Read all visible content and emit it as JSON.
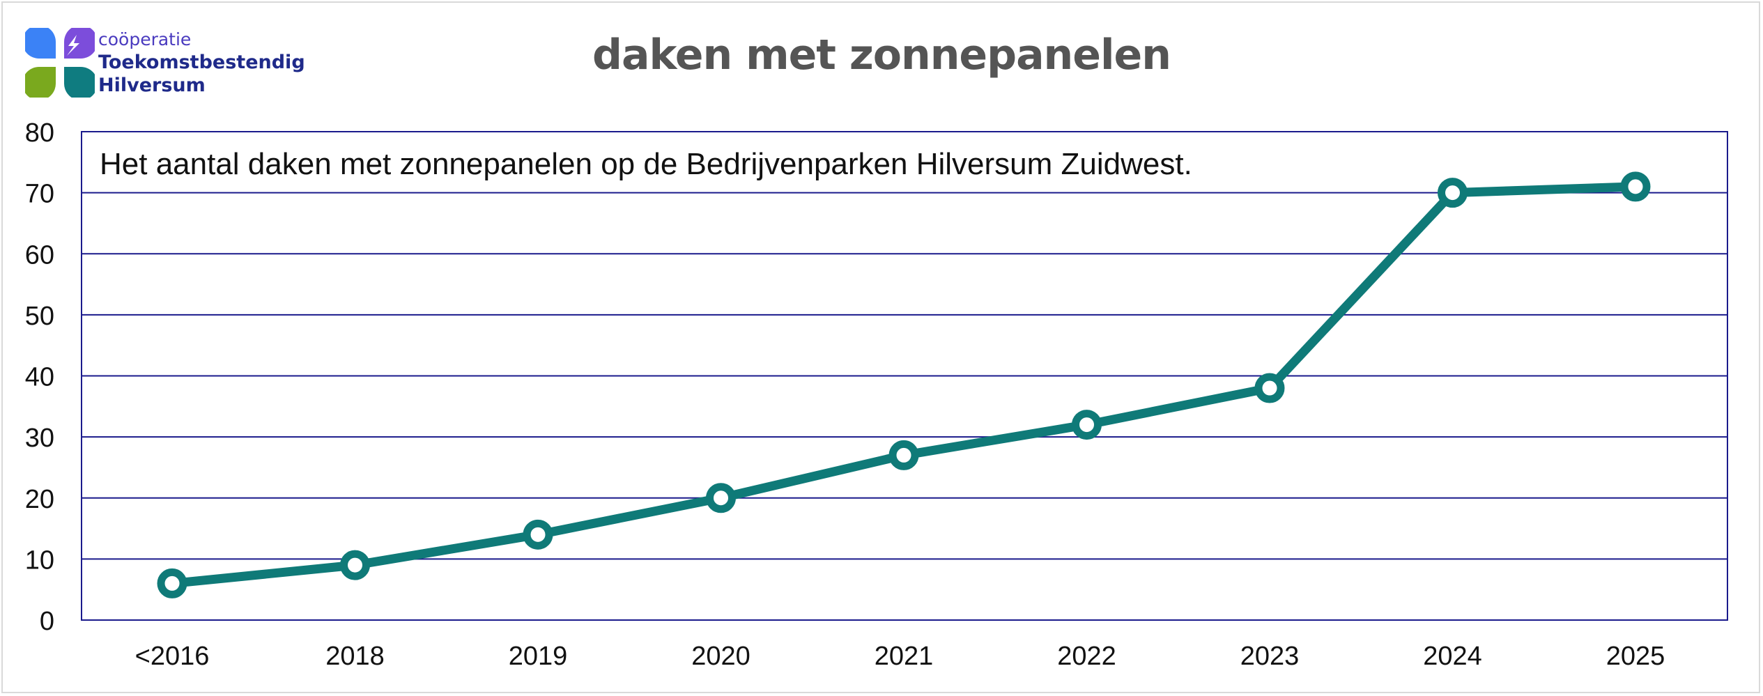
{
  "logo": {
    "line1": "coöperatie",
    "line2": "Toekomstbestendig",
    "line3": "Hilversum",
    "colors": [
      "#3b82f6",
      "#7c4ddb",
      "#7aa91e",
      "#0f7c80"
    ]
  },
  "chart_data": {
    "type": "line",
    "title": "daken met zonnepanelen",
    "annotation": "Het aantal daken met zonnepanelen op de Bedrijvenparken Hilversum Zuidwest.",
    "categories": [
      "<2016",
      "2018",
      "2019",
      "2020",
      "2021",
      "2022",
      "2023",
      "2024",
      "2025"
    ],
    "series": [
      {
        "values": [
          6,
          9,
          14,
          20,
          27,
          32,
          38,
          70,
          71
        ],
        "color": "#0f7a78"
      }
    ],
    "ylim": [
      0,
      80
    ],
    "yticks": [
      0,
      10,
      20,
      30,
      40,
      50,
      60,
      70,
      80
    ],
    "xlabel": "",
    "ylabel": "",
    "grid": true,
    "gridColor": "#1a1a8c",
    "legend": "none"
  }
}
